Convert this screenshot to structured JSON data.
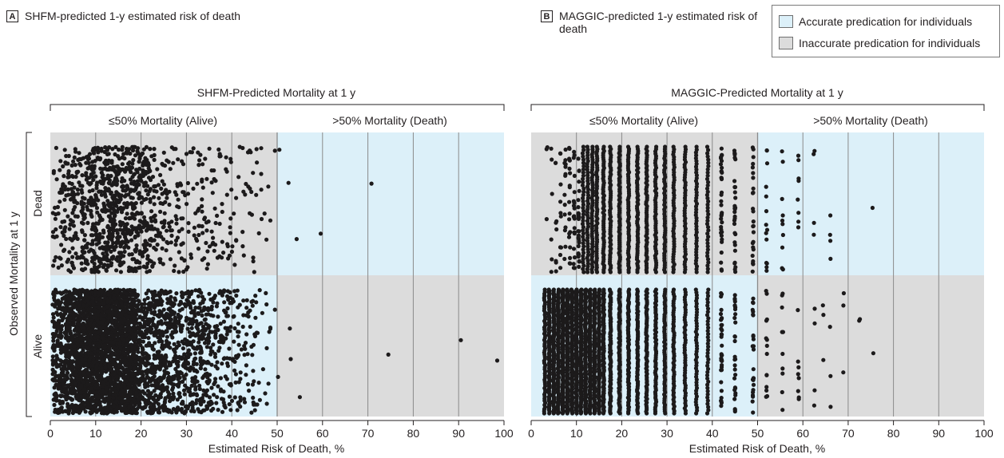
{
  "colors": {
    "accurate": "#dcf0f9",
    "inaccurate": "#dcdcdc",
    "point": "#1c1a1b",
    "gridline": "#8a8a8a",
    "axis": "#231f20"
  },
  "legend": {
    "accurate_label": "Accurate predication for individuals",
    "inaccurate_label": "Inaccurate predication for individuals"
  },
  "y_axis_title": "Observed Mortality at 1 y",
  "chart_data": [
    {
      "type": "scatter",
      "panel_letter": "A",
      "panel_title": "SHFM-predicted 1-y estimated risk of death",
      "group_title": "SHFM-Predicted Mortality at 1 y",
      "region_labels": [
        "≤50% Mortality (Alive)",
        ">50% Mortality (Death)"
      ],
      "xlabel": "Estimated Risk of Death, %",
      "xlim": [
        0,
        100
      ],
      "xticks": [
        "0",
        "10",
        "20",
        "30",
        "40",
        "50",
        "60",
        "70",
        "80",
        "90",
        "100"
      ],
      "ylabel_categories": [
        "Dead",
        "Alive"
      ],
      "threshold": 50,
      "grid": true,
      "quadrants": [
        {
          "row": "Dead",
          "x_range": [
            0,
            50
          ],
          "shade": "inaccurate"
        },
        {
          "row": "Dead",
          "x_range": [
            50,
            100
          ],
          "shade": "accurate"
        },
        {
          "row": "Alive",
          "x_range": [
            0,
            50
          ],
          "shade": "accurate"
        },
        {
          "row": "Alive",
          "x_range": [
            50,
            100
          ],
          "shade": "inaccurate"
        }
      ],
      "series": [
        {
          "row": "Dead",
          "distribution": "continuous",
          "x_range": [
            0.5,
            54
          ],
          "mode": 13,
          "count": 1100,
          "outliers": [
            49.5,
            50.5,
            52.5,
            54.3,
            59.6,
            70.8
          ]
        },
        {
          "row": "Alive",
          "distribution": "continuous",
          "x_range": [
            0.5,
            53
          ],
          "mode": 9,
          "count": 3600,
          "outliers": [
            49.5,
            50.2,
            52.8,
            53.0,
            55.0,
            74.5,
            90.5,
            98.5
          ]
        }
      ]
    },
    {
      "type": "scatter",
      "panel_letter": "B",
      "panel_title": "MAGGIC-predicted 1-y estimated risk of death",
      "group_title": "MAGGIC-Predicted Mortality at 1 y",
      "region_labels": [
        "≤50% Mortality (Alive)",
        ">50% Mortality (Death)"
      ],
      "xlabel": "Estimated Risk of Death, %",
      "xlim": [
        0,
        100
      ],
      "xticks": [
        "0",
        "10",
        "20",
        "30",
        "40",
        "50",
        "60",
        "70",
        "80",
        "90",
        "100"
      ],
      "ylabel_categories": [
        "Dead",
        "Alive"
      ],
      "threshold": 50,
      "grid": true,
      "quadrants": [
        {
          "row": "Dead",
          "x_range": [
            0,
            50
          ],
          "shade": "inaccurate"
        },
        {
          "row": "Dead",
          "x_range": [
            50,
            100
          ],
          "shade": "accurate"
        },
        {
          "row": "Alive",
          "x_range": [
            0,
            50
          ],
          "shade": "accurate"
        },
        {
          "row": "Alive",
          "x_range": [
            50,
            100
          ],
          "shade": "inaccurate"
        }
      ],
      "series": [
        {
          "row": "Dead",
          "distribution": "discrete",
          "levels": [
            3.5,
            4.5,
            5.5,
            6.5,
            7.5,
            8.5,
            9.5,
            10.5,
            11.5,
            12.5,
            13.5,
            14.5,
            16,
            17.5,
            19.5,
            21.5,
            23.5,
            25.5,
            27.5,
            29.5,
            31.5,
            34,
            36.5,
            39,
            42,
            45,
            49,
            52,
            55.5,
            59,
            62.5,
            66,
            75.5
          ],
          "counts": [
            3,
            6,
            8,
            10,
            14,
            18,
            22,
            30,
            40,
            45,
            50,
            55,
            60,
            60,
            60,
            60,
            60,
            60,
            55,
            55,
            50,
            50,
            45,
            40,
            35,
            30,
            25,
            14,
            10,
            8,
            4,
            4,
            1
          ]
        },
        {
          "row": "Alive",
          "distribution": "discrete",
          "levels": [
            3,
            4,
            5,
            6,
            7,
            8,
            9,
            10,
            11,
            12,
            13,
            14,
            15,
            16,
            17.5,
            19.5,
            21.5,
            23.5,
            25.5,
            27.5,
            29.5,
            31.5,
            34,
            36.5,
            39,
            42,
            45,
            49,
            52,
            55.5,
            59,
            62.5,
            64.5,
            66,
            69,
            72.5,
            75.5
          ],
          "counts": [
            60,
            100,
            130,
            140,
            150,
            150,
            150,
            150,
            150,
            140,
            130,
            120,
            110,
            100,
            90,
            85,
            80,
            75,
            70,
            65,
            60,
            55,
            50,
            45,
            40,
            35,
            30,
            25,
            14,
            10,
            8,
            4,
            3,
            3,
            3,
            2,
            1
          ]
        }
      ]
    }
  ]
}
